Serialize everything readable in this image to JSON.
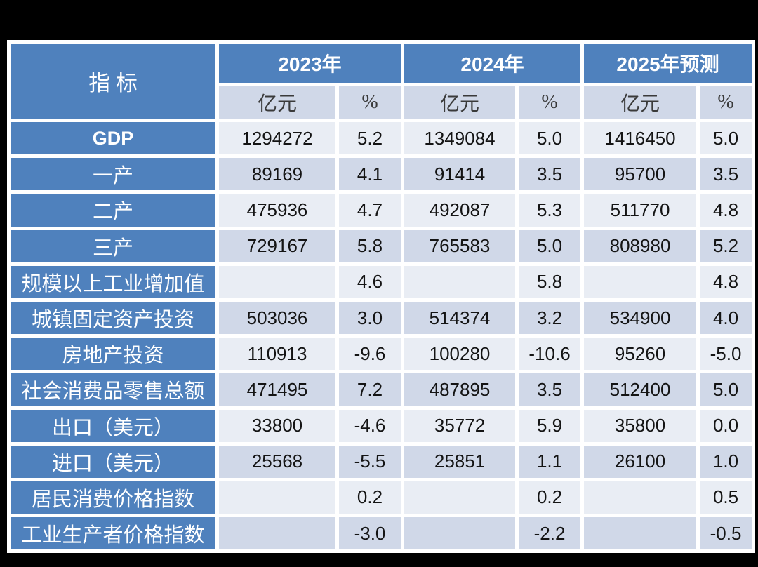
{
  "colors": {
    "header_blue": "#4f81bd",
    "band_light": "#e9edf4",
    "band_dark": "#d0d8e8",
    "border_white": "#ffffff",
    "page_bg": "#000000",
    "subheader_text": "#3a3a3a",
    "number_text": "#141414",
    "header_text": "#ffffff"
  },
  "chart_data": {
    "type": "table",
    "title": "",
    "header": {
      "indicator": "指 标",
      "year_groups": [
        "2023年",
        "2024年",
        "2025年预测"
      ],
      "subheaders": [
        "亿元",
        "%",
        "亿元",
        "%",
        "亿元",
        "%"
      ]
    },
    "rows": [
      {
        "label": "GDP",
        "emphasis": true,
        "values": [
          "1294272",
          "5.2",
          "1349084",
          "5.0",
          "1416450",
          "5.0"
        ]
      },
      {
        "label": "一产",
        "values": [
          "89169",
          "4.1",
          "91414",
          "3.5",
          "95700",
          "3.5"
        ]
      },
      {
        "label": "二产",
        "values": [
          "475936",
          "4.7",
          "492087",
          "5.3",
          "511770",
          "4.8"
        ]
      },
      {
        "label": "三产",
        "values": [
          "729167",
          "5.8",
          "765583",
          "5.0",
          "808980",
          "5.2"
        ]
      },
      {
        "label": "规模以上工业增加值",
        "values": [
          "",
          "4.6",
          "",
          "5.8",
          "",
          "4.8"
        ]
      },
      {
        "label": "城镇固定资产投资",
        "values": [
          "503036",
          "3.0",
          "514374",
          "3.2",
          "534900",
          "4.0"
        ]
      },
      {
        "label": "房地产投资",
        "values": [
          "110913",
          "-9.6",
          "100280",
          "-10.6",
          "95260",
          "-5.0"
        ]
      },
      {
        "label": "社会消费品零售总额",
        "values": [
          "471495",
          "7.2",
          "487895",
          "3.5",
          "512400",
          "5.0"
        ]
      },
      {
        "label": "出口（美元）",
        "values": [
          "33800",
          "-4.6",
          "35772",
          "5.9",
          "35800",
          "0.0"
        ]
      },
      {
        "label": "进口（美元）",
        "values": [
          "25568",
          "-5.5",
          "25851",
          "1.1",
          "26100",
          "1.0"
        ]
      },
      {
        "label": "居民消费价格指数",
        "values": [
          "",
          "0.2",
          "",
          "0.2",
          "",
          "0.5"
        ]
      },
      {
        "label": "工业生产者价格指数",
        "values": [
          "",
          "-3.0",
          "",
          "-2.2",
          "",
          "-0.5"
        ]
      }
    ]
  }
}
